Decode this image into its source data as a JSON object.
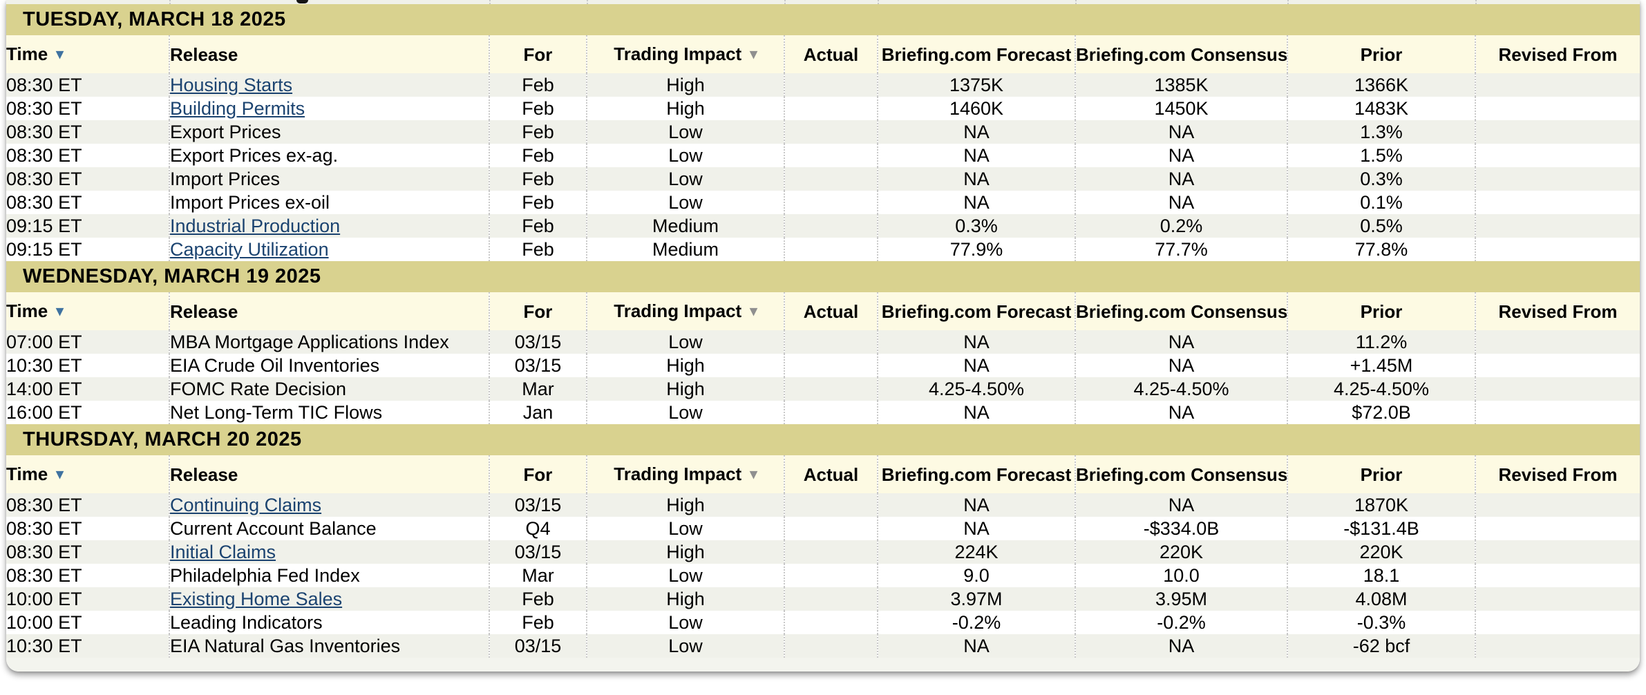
{
  "colors": {
    "day_band_bg": "#d9d28f",
    "column_header_bg": "#fdfae3",
    "row_stripe_bg": "#f0f1ea",
    "row_white_bg": "#ffffff",
    "link_color": "#1b4370",
    "active_sort_arrow": "#3f72a0",
    "inactive_sort_arrow": "#8f8f8f",
    "text_color": "#000000"
  },
  "columns": [
    {
      "key": "time",
      "label": "Time",
      "sort_arrow": "blue"
    },
    {
      "key": "release",
      "label": "Release"
    },
    {
      "key": "for",
      "label": "For"
    },
    {
      "key": "impact",
      "label": "Trading Impact",
      "sort_arrow": "gray"
    },
    {
      "key": "actual",
      "label": "Actual"
    },
    {
      "key": "forecast",
      "label": "Briefing.com Forecast"
    },
    {
      "key": "consensus",
      "label": "Briefing.com Consensus"
    },
    {
      "key": "prior",
      "label": "Prior"
    },
    {
      "key": "revised",
      "label": "Revised From"
    }
  ],
  "sections": [
    {
      "date_header": "TUESDAY, MARCH 18 2025",
      "rows": [
        {
          "time": "08:30 ET",
          "release": "Housing Starts",
          "is_link": true,
          "for": "Feb",
          "impact": "High",
          "actual": "",
          "forecast": "1375K",
          "consensus": "1385K",
          "prior": "1366K",
          "revised": ""
        },
        {
          "time": "08:30 ET",
          "release": "Building Permits",
          "is_link": true,
          "for": "Feb",
          "impact": "High",
          "actual": "",
          "forecast": "1460K",
          "consensus": "1450K",
          "prior": "1483K",
          "revised": ""
        },
        {
          "time": "08:30 ET",
          "release": "Export Prices",
          "is_link": false,
          "for": "Feb",
          "impact": "Low",
          "actual": "",
          "forecast": "NA",
          "consensus": "NA",
          "prior": "1.3%",
          "revised": ""
        },
        {
          "time": "08:30 ET",
          "release": "Export Prices ex-ag.",
          "is_link": false,
          "for": "Feb",
          "impact": "Low",
          "actual": "",
          "forecast": "NA",
          "consensus": "NA",
          "prior": "1.5%",
          "revised": ""
        },
        {
          "time": "08:30 ET",
          "release": "Import Prices",
          "is_link": false,
          "for": "Feb",
          "impact": "Low",
          "actual": "",
          "forecast": "NA",
          "consensus": "NA",
          "prior": "0.3%",
          "revised": ""
        },
        {
          "time": "08:30 ET",
          "release": "Import Prices ex-oil",
          "is_link": false,
          "for": "Feb",
          "impact": "Low",
          "actual": "",
          "forecast": "NA",
          "consensus": "NA",
          "prior": "0.1%",
          "revised": ""
        },
        {
          "time": "09:15 ET",
          "release": "Industrial Production",
          "is_link": true,
          "for": "Feb",
          "impact": "Medium",
          "actual": "",
          "forecast": "0.3%",
          "consensus": "0.2%",
          "prior": "0.5%",
          "revised": ""
        },
        {
          "time": "09:15 ET",
          "release": "Capacity Utilization",
          "is_link": true,
          "for": "Feb",
          "impact": "Medium",
          "actual": "",
          "forecast": "77.9%",
          "consensus": "77.7%",
          "prior": "77.8%",
          "revised": ""
        }
      ]
    },
    {
      "date_header": "WEDNESDAY, MARCH 19 2025",
      "rows": [
        {
          "time": "07:00 ET",
          "release": "MBA Mortgage Applications Index",
          "is_link": false,
          "for": "03/15",
          "impact": "Low",
          "actual": "",
          "forecast": "NA",
          "consensus": "NA",
          "prior": "11.2%",
          "revised": ""
        },
        {
          "time": "10:30 ET",
          "release": "EIA Crude Oil Inventories",
          "is_link": false,
          "for": "03/15",
          "impact": "High",
          "actual": "",
          "forecast": "NA",
          "consensus": "NA",
          "prior": "+1.45M",
          "revised": ""
        },
        {
          "time": "14:00 ET",
          "release": "FOMC Rate Decision",
          "is_link": false,
          "for": "Mar",
          "impact": "High",
          "actual": "",
          "forecast": "4.25-4.50%",
          "consensus": "4.25-4.50%",
          "prior": "4.25-4.50%",
          "revised": ""
        },
        {
          "time": "16:00 ET",
          "release": "Net Long-Term TIC Flows",
          "is_link": false,
          "for": "Jan",
          "impact": "Low",
          "actual": "",
          "forecast": "NA",
          "consensus": "NA",
          "prior": "$72.0B",
          "revised": ""
        }
      ]
    },
    {
      "date_header": "THURSDAY, MARCH 20 2025",
      "rows": [
        {
          "time": "08:30 ET",
          "release": "Continuing Claims",
          "is_link": true,
          "for": "03/15",
          "impact": "High",
          "actual": "",
          "forecast": "NA",
          "consensus": "NA",
          "prior": "1870K",
          "revised": ""
        },
        {
          "time": "08:30 ET",
          "release": "Current Account Balance",
          "is_link": false,
          "for": "Q4",
          "impact": "Low",
          "actual": "",
          "forecast": "NA",
          "consensus": "-$334.0B",
          "prior": "-$131.4B",
          "revised": ""
        },
        {
          "time": "08:30 ET",
          "release": "Initial Claims",
          "is_link": true,
          "for": "03/15",
          "impact": "High",
          "actual": "",
          "forecast": "224K",
          "consensus": "220K",
          "prior": "220K",
          "revised": ""
        },
        {
          "time": "08:30 ET",
          "release": "Philadelphia Fed Index",
          "is_link": false,
          "for": "Mar",
          "impact": "Low",
          "actual": "",
          "forecast": "9.0",
          "consensus": "10.0",
          "prior": "18.1",
          "revised": ""
        },
        {
          "time": "10:00 ET",
          "release": "Existing Home Sales",
          "is_link": true,
          "for": "Feb",
          "impact": "High",
          "actual": "",
          "forecast": "3.97M",
          "consensus": "3.95M",
          "prior": "4.08M",
          "revised": ""
        },
        {
          "time": "10:00 ET",
          "release": "Leading Indicators",
          "is_link": false,
          "for": "Feb",
          "impact": "Low",
          "actual": "",
          "forecast": "-0.2%",
          "consensus": "-0.2%",
          "prior": "-0.3%",
          "revised": ""
        },
        {
          "time": "10:30 ET",
          "release": "EIA Natural Gas Inventories",
          "is_link": false,
          "for": "03/15",
          "impact": "Low",
          "actual": "",
          "forecast": "NA",
          "consensus": "NA",
          "prior": "-62 bcf",
          "revised": ""
        }
      ]
    }
  ]
}
